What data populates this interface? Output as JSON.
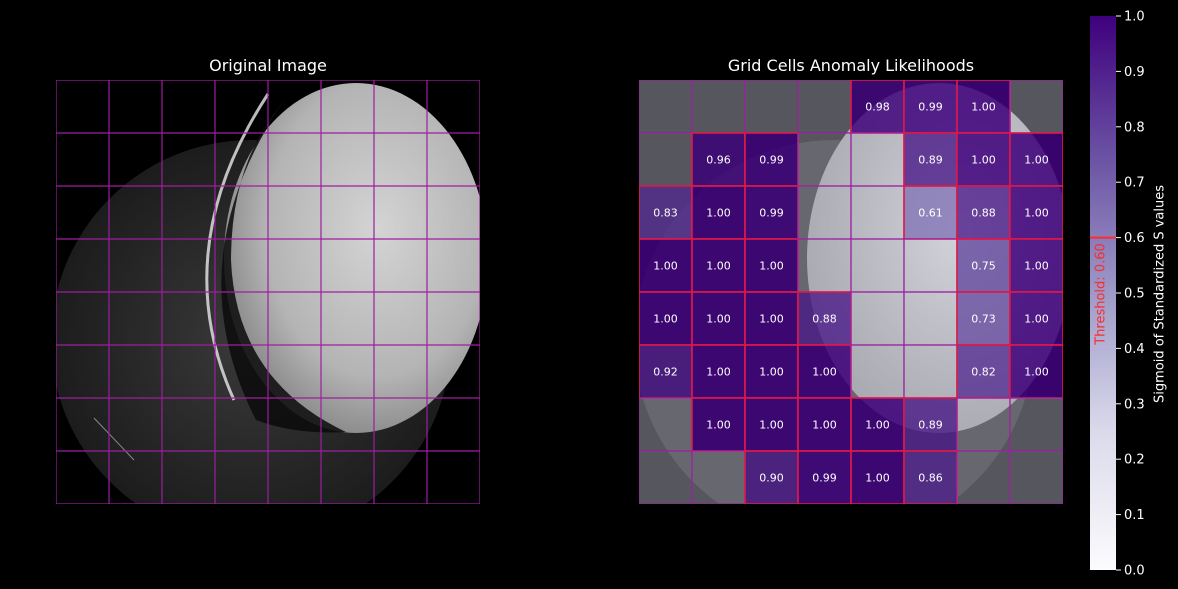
{
  "left_panel": {
    "title": "Original Image"
  },
  "right_panel": {
    "title": "Grid Cells Anomaly Likelihoods"
  },
  "colorbar": {
    "label": "Sigmoid of Standardized S values",
    "ticks": [
      "0.0",
      "0.1",
      "0.2",
      "0.3",
      "0.4",
      "0.5",
      "0.6",
      "0.7",
      "0.8",
      "0.9",
      "1.0"
    ],
    "threshold_label": "Threshold: 0.60"
  },
  "colors": {
    "grid_line": "#9b1fa0",
    "highlight_border": "#e0184a",
    "threshold": "#ff2a2a",
    "cmap_low": "#fcfbfd",
    "cmap_mid": "#9e9ac8",
    "cmap_high": "#3f007d"
  },
  "chart_data": {
    "type": "heatmap",
    "title": "Grid Cells Anomaly Likelihoods",
    "rows": 8,
    "cols": 8,
    "threshold": 0.6,
    "values": [
      [
        null,
        null,
        null,
        null,
        0.98,
        0.99,
        1.0,
        null
      ],
      [
        null,
        0.96,
        0.99,
        null,
        null,
        0.89,
        1.0,
        1.0
      ],
      [
        0.83,
        1.0,
        0.99,
        null,
        null,
        0.61,
        0.88,
        1.0
      ],
      [
        1.0,
        1.0,
        1.0,
        null,
        null,
        null,
        0.75,
        1.0
      ],
      [
        1.0,
        1.0,
        1.0,
        0.88,
        null,
        null,
        0.73,
        1.0
      ],
      [
        0.92,
        1.0,
        1.0,
        1.0,
        null,
        null,
        0.82,
        1.0
      ],
      [
        null,
        1.0,
        1.0,
        1.0,
        1.0,
        0.89,
        null,
        null
      ],
      [
        null,
        null,
        0.9,
        0.99,
        1.0,
        0.86,
        null,
        null
      ]
    ],
    "colorbar_range": [
      0,
      1
    ],
    "colorbar_label": "Sigmoid of Standardized S values"
  }
}
